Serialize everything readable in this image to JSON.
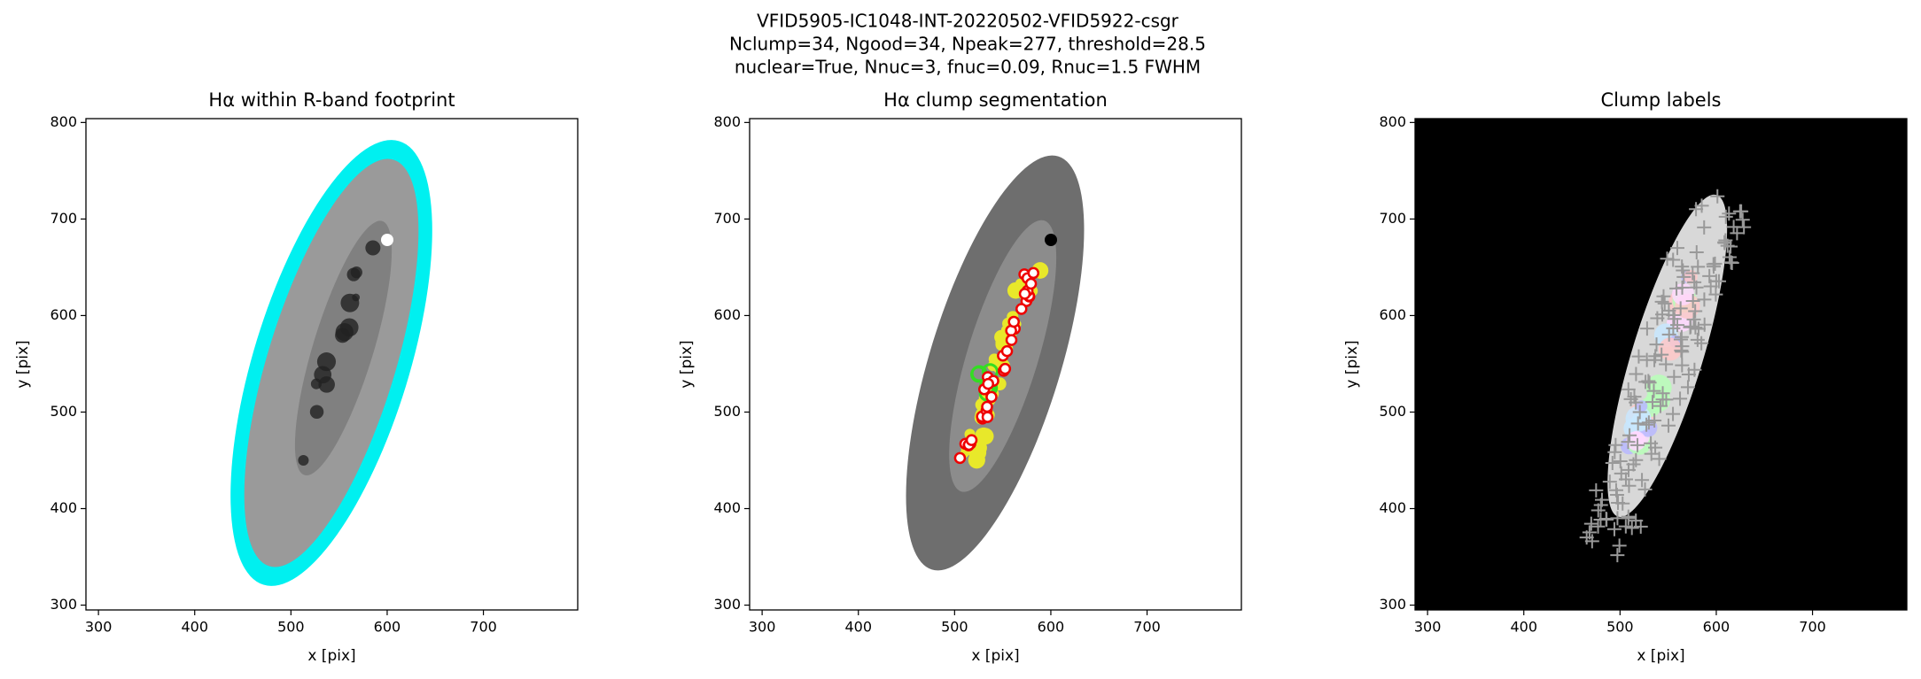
{
  "figure_title": [
    "VFID5905-IC1048-INT-20220502-VFID5922-csgr",
    "Nclump=34, Ngood=34, Npeak=277, threshold=28.5",
    "nuclear=True, Nnuc=3, fnuc=0.09, Rnuc=1.5 FWHM"
  ],
  "chart_data": [
    {
      "type": "image",
      "title": "Hα within R-band footprint",
      "xlabel": "x [pix]",
      "ylabel": "y [pix]",
      "xlim": [
        287,
        798
      ],
      "ylim": [
        295,
        804
      ],
      "xticks": [
        300,
        400,
        500,
        600,
        700
      ],
      "yticks": [
        300,
        400,
        500,
        600,
        700,
        800
      ]
    },
    {
      "type": "image",
      "title": "Hα clump segmentation",
      "xlabel": "x [pix]",
      "ylabel": "y [pix]",
      "xlim": [
        287,
        798
      ],
      "ylim": [
        295,
        804
      ],
      "xticks": [
        300,
        400,
        500,
        600,
        700
      ],
      "yticks": [
        300,
        400,
        500,
        600,
        700,
        800
      ]
    },
    {
      "type": "image",
      "title": "Clump labels",
      "xlabel": "x [pix]",
      "ylabel": "y [pix]",
      "xlim": [
        287,
        798
      ],
      "ylim": [
        295,
        804
      ],
      "xticks": [
        300,
        400,
        500,
        600,
        700
      ],
      "yticks": [
        300,
        400,
        500,
        600,
        700,
        800
      ]
    }
  ]
}
